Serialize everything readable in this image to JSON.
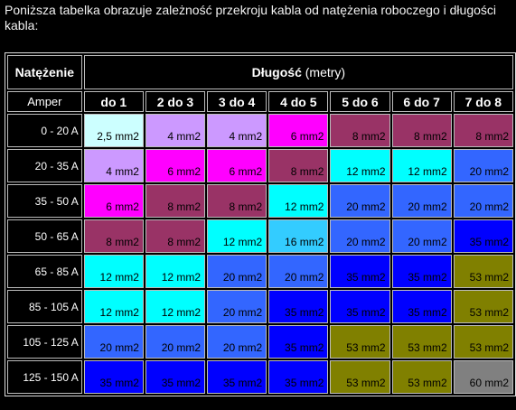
{
  "intro_text": "Poniższa tabelka obrazuje zależność przekroju kabla od natężenia roboczego i długości kabla:",
  "header": {
    "natezenie": "Natężenie",
    "dlugosc": "Długość",
    "metry": "(metry)",
    "amper": "Amper",
    "columns": [
      "do 1",
      "2 do 3",
      "3 do 4",
      "4 do 5",
      "5 do 6",
      "6 do 7",
      "7 do 8"
    ]
  },
  "colors": {
    "c25": "#ccffff",
    "c4": "#cc99ff",
    "c6": "#ff00ff",
    "c8": "#993366",
    "c12": "#00ffff",
    "c16": "#33ccff",
    "c20": "#3366ff",
    "c35": "#0000ff",
    "c53": "#808000",
    "c60": "#808080"
  },
  "rows": [
    {
      "label": "0 - 20 A",
      "cells": [
        "2,5 mm2",
        "4 mm2",
        "4 mm2",
        "6 mm2",
        "8 mm2",
        "8 mm2",
        "8 mm2"
      ],
      "classes": [
        "c25",
        "c4",
        "c4",
        "c6",
        "c8",
        "c8",
        "c8"
      ]
    },
    {
      "label": "20 - 35 A",
      "cells": [
        "4 mm2",
        "6 mm2",
        "6 mm2",
        "8 mm2",
        "12 mm2",
        "12 mm2",
        "20 mm2"
      ],
      "classes": [
        "c4",
        "c6",
        "c6",
        "c8",
        "c12",
        "c12",
        "c20"
      ]
    },
    {
      "label": "35 - 50 A",
      "cells": [
        "6 mm2",
        "8 mm2",
        "8 mm2",
        "12 mm2",
        "20 mm2",
        "20 mm2",
        "20 mm2"
      ],
      "classes": [
        "c6",
        "c8",
        "c8",
        "c12",
        "c20",
        "c20",
        "c20"
      ]
    },
    {
      "label": "50 - 65 A",
      "cells": [
        "8 mm2",
        "8 mm2",
        "12 mm2",
        "16 mm2",
        "20 mm2",
        "20 mm2",
        "35 mm2"
      ],
      "classes": [
        "c8",
        "c8",
        "c12",
        "c16",
        "c20",
        "c20",
        "c35"
      ]
    },
    {
      "label": "65 - 85 A",
      "cells": [
        "12 mm2",
        "12 mm2",
        "20 mm2",
        "20 mm2",
        "35 mm2",
        "35 mm2",
        "53 mm2"
      ],
      "classes": [
        "c12",
        "c12",
        "c20",
        "c20",
        "c35",
        "c35",
        "c53"
      ]
    },
    {
      "label": "85 - 105 A",
      "cells": [
        "12 mm2",
        "12 mm2",
        "20 mm2",
        "35 mm2",
        "35 mm2",
        "35 mm2",
        "53 mm2"
      ],
      "classes": [
        "c12",
        "c12",
        "c20",
        "c35",
        "c35",
        "c35",
        "c53"
      ]
    },
    {
      "label": "105 - 125 A",
      "cells": [
        "20 mm2",
        "20 mm2",
        "20 mm2",
        "35 mm2",
        "53 mm2",
        "53 mm2",
        "53 mm2"
      ],
      "classes": [
        "c20",
        "c20",
        "c20",
        "c35",
        "c53",
        "c53",
        "c53"
      ]
    },
    {
      "label": "125 - 150 A",
      "cells": [
        "35 mm2",
        "35 mm2",
        "35 mm2",
        "35 mm2",
        "53 mm2",
        "53 mm2",
        "60 mm2"
      ],
      "classes": [
        "c35",
        "c35",
        "c35",
        "c35",
        "c53",
        "c53",
        "c60"
      ]
    }
  ]
}
